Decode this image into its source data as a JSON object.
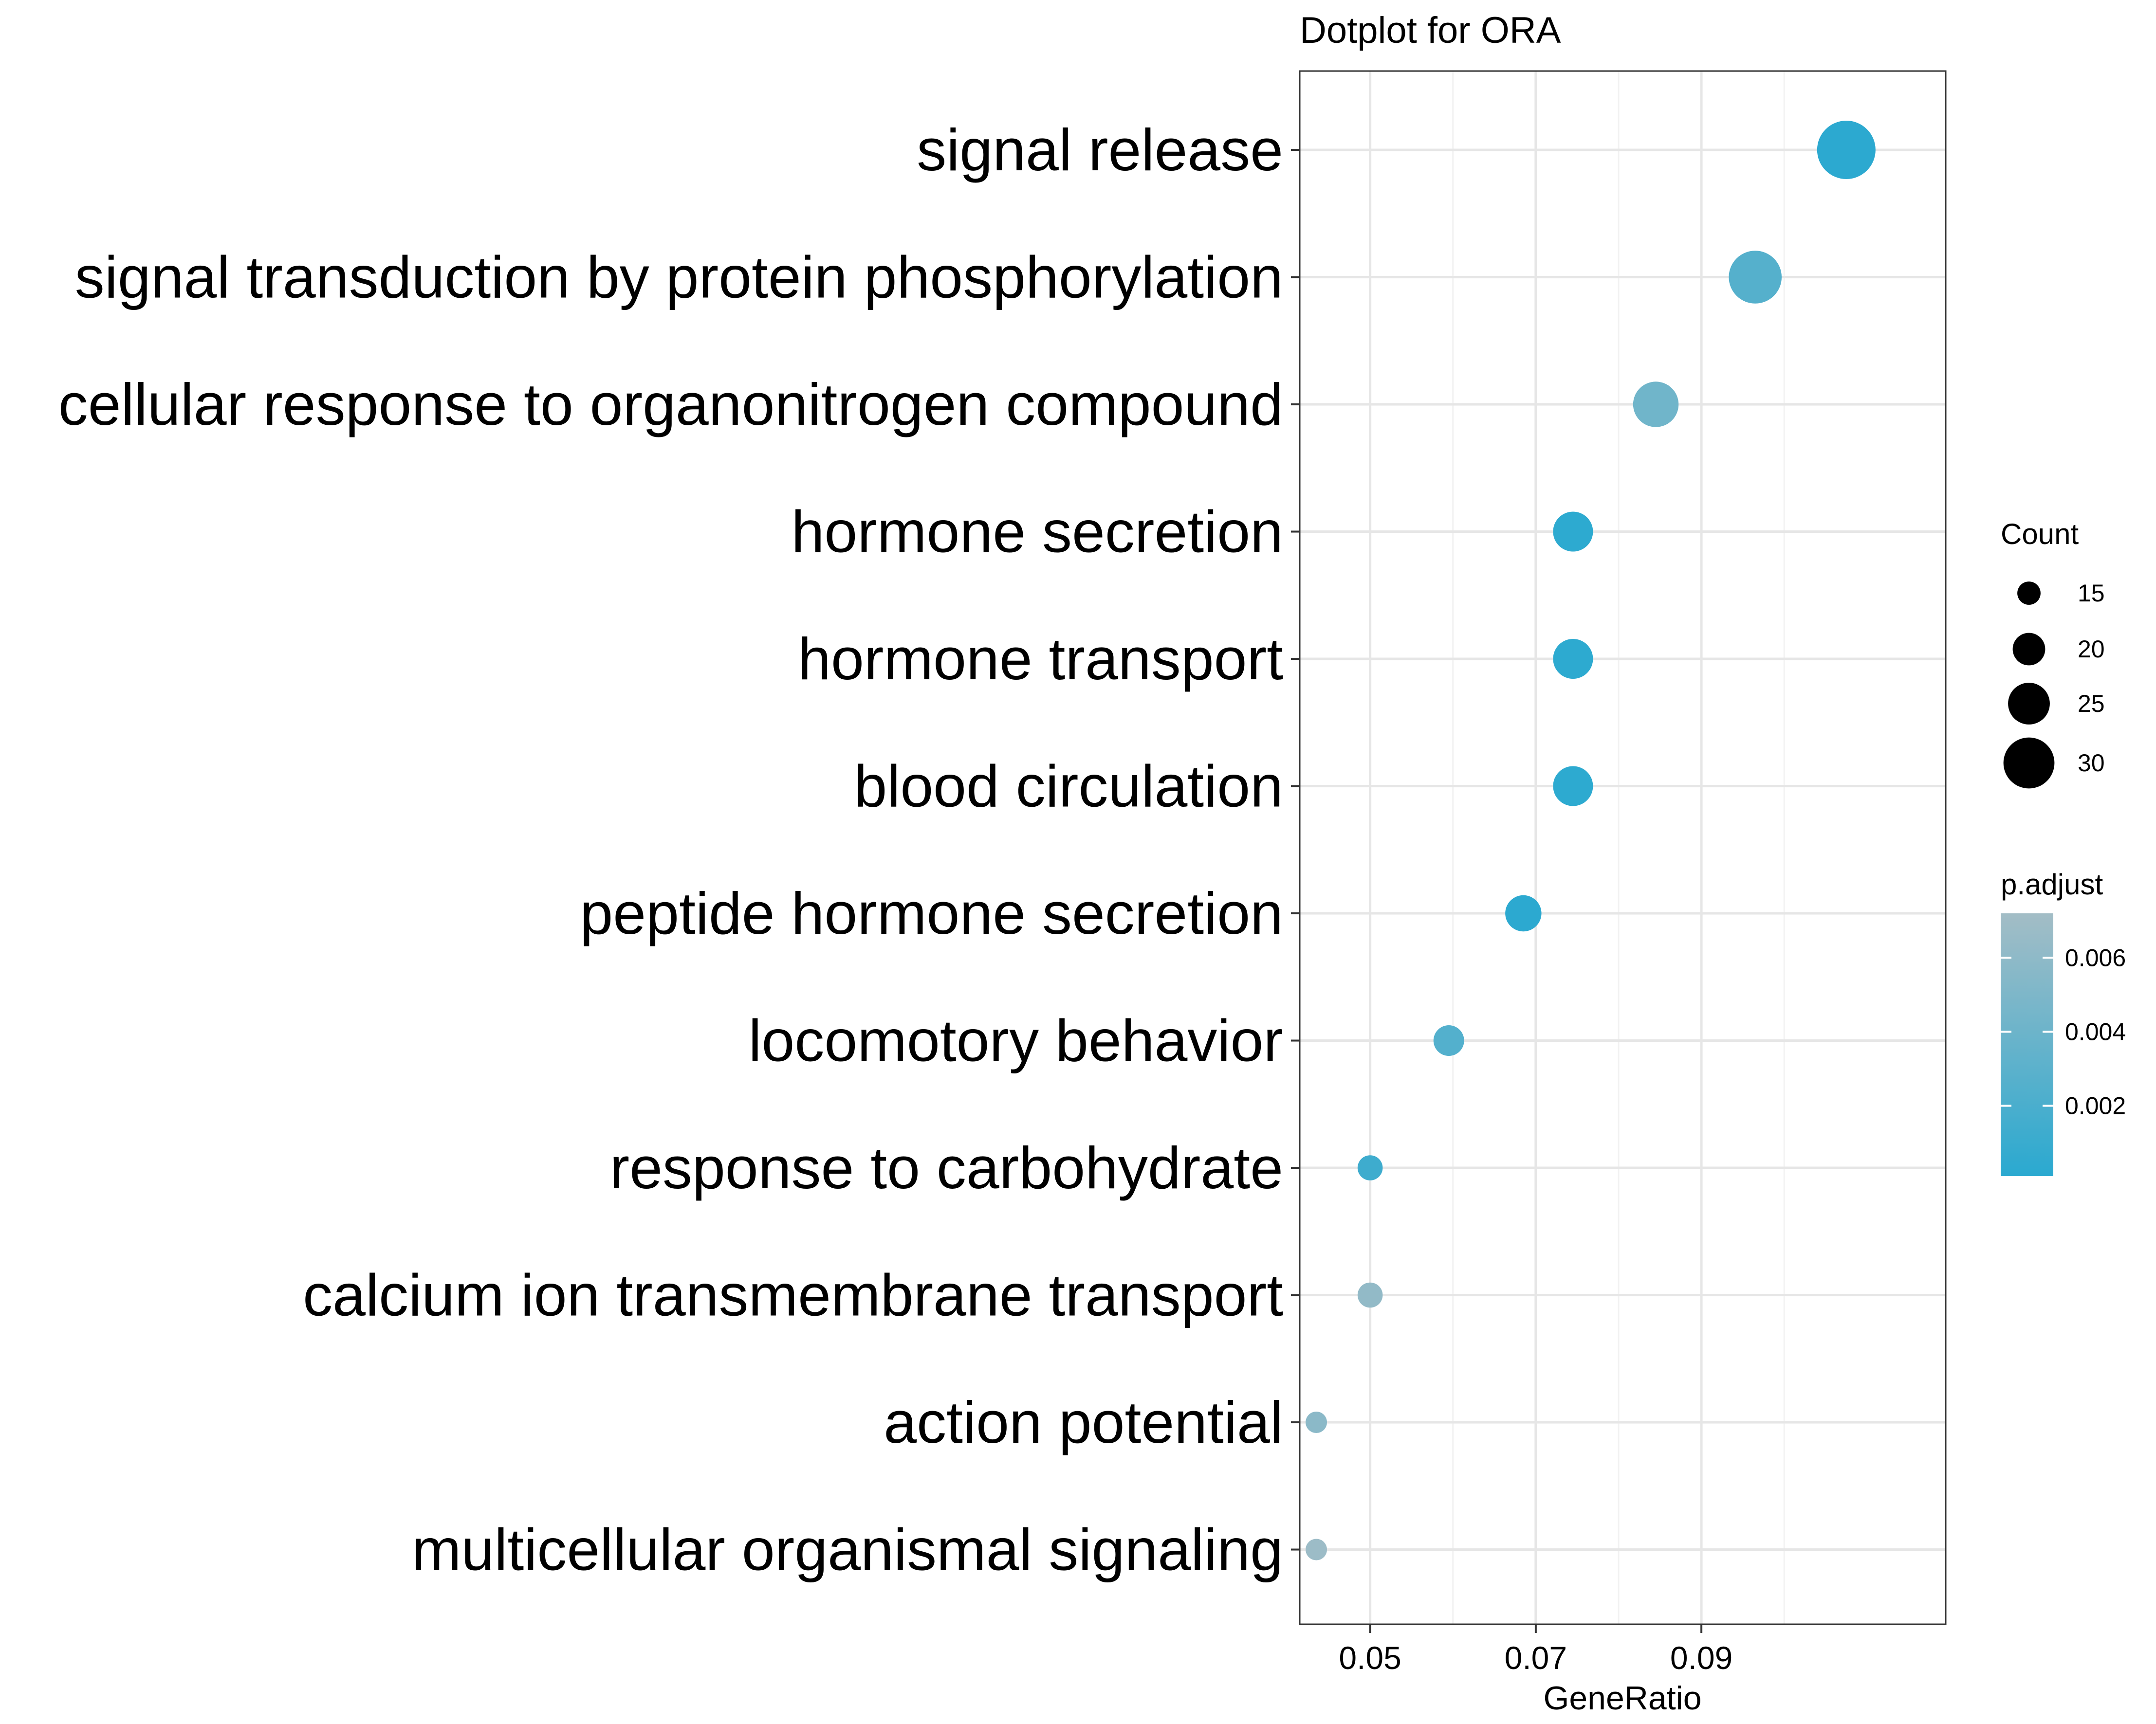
{
  "chart_data": {
    "type": "scatter",
    "title": "Dotplot for ORA",
    "xlabel": "GeneRatio",
    "ylabel": "",
    "xlim": [
      0.0415,
      0.1195
    ],
    "x_ticks": [
      0.05,
      0.07,
      0.09
    ],
    "x_tick_labels": [
      "0.05",
      "0.07",
      "0.09"
    ],
    "grid": true,
    "legend_position": "right",
    "categories": [
      "signal release",
      "signal transduction by protein phosphorylation",
      "cellular response to organonitrogen compound",
      "hormone secretion",
      "hormone transport",
      "blood circulation",
      "peptide hormone secretion",
      "locomotory behavior",
      "response to carbohydrate",
      "calcium ion transmembrane transport",
      "action potential",
      "multicellular organismal signaling"
    ],
    "points": [
      {
        "term": "signal release",
        "gene_ratio": 0.1075,
        "count": 34,
        "p_adjust": 0.0002
      },
      {
        "term": "signal transduction by protein phosphorylation",
        "gene_ratio": 0.0965,
        "count": 31,
        "p_adjust": 0.0026
      },
      {
        "term": "cellular response to organonitrogen compound",
        "gene_ratio": 0.0845,
        "count": 27,
        "p_adjust": 0.0042
      },
      {
        "term": "hormone secretion",
        "gene_ratio": 0.0745,
        "count": 24,
        "p_adjust": 0.0003
      },
      {
        "term": "hormone transport",
        "gene_ratio": 0.0745,
        "count": 24,
        "p_adjust": 0.0003
      },
      {
        "term": "blood circulation",
        "gene_ratio": 0.0745,
        "count": 24,
        "p_adjust": 0.0003
      },
      {
        "term": "peptide hormone secretion",
        "gene_ratio": 0.0685,
        "count": 22,
        "p_adjust": 0.0002
      },
      {
        "term": "locomotory behavior",
        "gene_ratio": 0.0595,
        "count": 19,
        "p_adjust": 0.0025
      },
      {
        "term": "response to carbohydrate",
        "gene_ratio": 0.05,
        "count": 16,
        "p_adjust": 0.0013
      },
      {
        "term": "calcium ion transmembrane transport",
        "gene_ratio": 0.05,
        "count": 16,
        "p_adjust": 0.0062
      },
      {
        "term": "action potential",
        "gene_ratio": 0.0435,
        "count": 14,
        "p_adjust": 0.0058
      },
      {
        "term": "multicellular organismal signaling",
        "gene_ratio": 0.0435,
        "count": 14,
        "p_adjust": 0.0068
      }
    ],
    "size_legend": {
      "title": "Count",
      "values": [
        15,
        20,
        25,
        30
      ],
      "labels": [
        "15",
        "20",
        "25",
        "30"
      ]
    },
    "color_legend": {
      "title": "p.adjust",
      "ticks": [
        0.002,
        0.004,
        0.006
      ],
      "labels": [
        "0.002",
        "0.004",
        "0.006"
      ],
      "range": [
        0.0001,
        0.0072
      ],
      "low_color": "#2aa9d0",
      "high_color": "#a3bdc6"
    }
  }
}
